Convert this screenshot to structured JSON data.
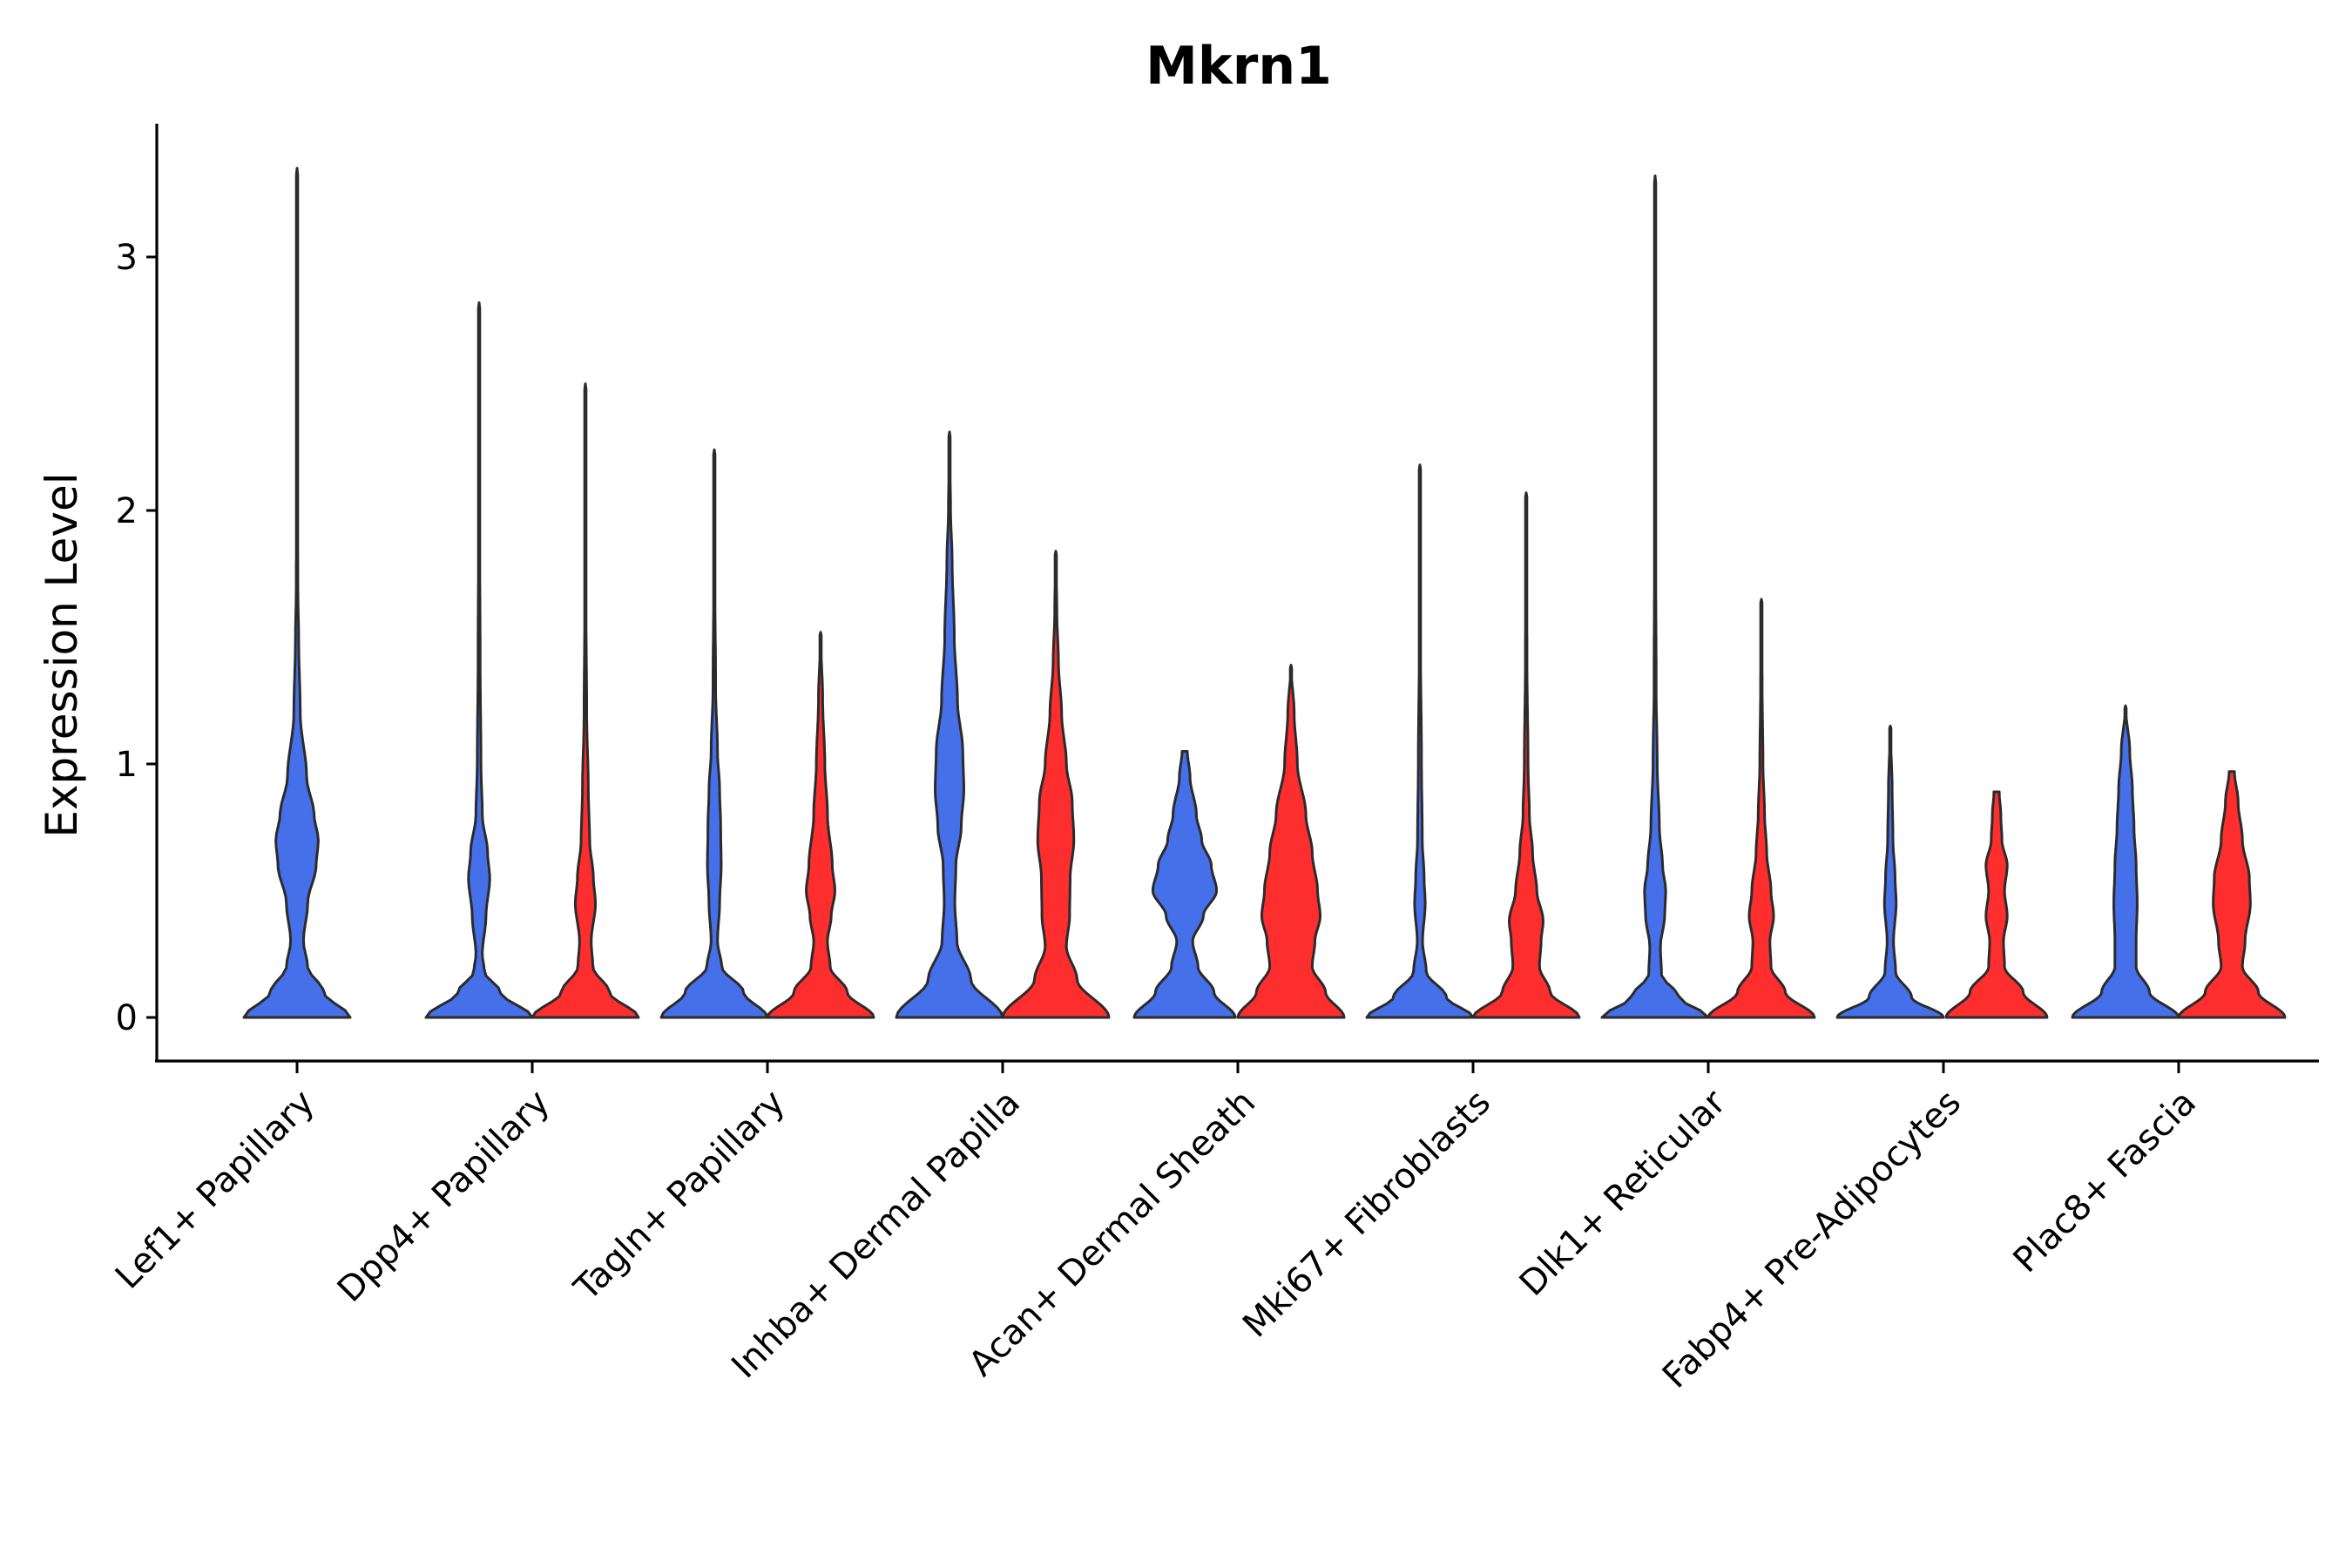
{
  "chart_data": {
    "type": "violin",
    "title": "Mkrn1",
    "xlabel": "",
    "ylabel": "Expression Level",
    "ylim": [
      -0.17,
      3.55
    ],
    "yticks": [
      0,
      1,
      2,
      3
    ],
    "grid": false,
    "legend": "none",
    "colors": {
      "group_a": "#4570ea",
      "group_b": "#ff2e2e",
      "outline": "#2b2b2b"
    },
    "categories": [
      "Lef1+ Papillary",
      "Dpp4+ Papillary",
      "Tagln+ Papillary",
      "Inhba+ Dermal Papilla",
      "Acan+ Dermal Sheath",
      "Mki67+ Fibroblasts",
      "Dlk1+ Reticular",
      "Fabp4+ Pre-Adipocytes",
      "Plac8+ Fascia"
    ],
    "series": [
      {
        "name": "group_a",
        "color": "#4570ea",
        "violins": [
          {
            "category": "Lef1+ Papillary",
            "max": 3.35,
            "profile": [
              [
                0,
                1.0
              ],
              [
                0.1,
                0.5
              ],
              [
                0.2,
                0.2
              ],
              [
                0.3,
                0.12
              ],
              [
                0.45,
                0.2
              ],
              [
                0.6,
                0.36
              ],
              [
                0.7,
                0.4
              ],
              [
                0.8,
                0.32
              ],
              [
                0.95,
                0.18
              ],
              [
                1.2,
                0.06
              ],
              [
                1.5,
                0.03
              ],
              [
                1.7,
                0.015
              ],
              [
                2.2,
                0.006
              ],
              [
                3.35,
                0
              ]
            ]
          },
          {
            "category": "Dpp4+ Papillary",
            "max": 2.82,
            "profile": [
              [
                0,
                1.0
              ],
              [
                0.1,
                0.4
              ],
              [
                0.18,
                0.1
              ],
              [
                0.25,
                0.06
              ],
              [
                0.4,
                0.13
              ],
              [
                0.55,
                0.2
              ],
              [
                0.65,
                0.16
              ],
              [
                0.8,
                0.06
              ],
              [
                1.0,
                0.035
              ],
              [
                1.4,
                0.02
              ],
              [
                2.0,
                0.008
              ],
              [
                2.82,
                0
              ]
            ]
          },
          {
            "category": "Tagln+ Papillary",
            "max": 2.24,
            "profile": [
              [
                0,
                1.0
              ],
              [
                0.1,
                0.55
              ],
              [
                0.2,
                0.14
              ],
              [
                0.3,
                0.06
              ],
              [
                0.45,
                0.1
              ],
              [
                0.6,
                0.13
              ],
              [
                0.75,
                0.12
              ],
              [
                0.9,
                0.1
              ],
              [
                1.05,
                0.06
              ],
              [
                1.3,
                0.025
              ],
              [
                1.7,
                0.012
              ],
              [
                2.24,
                0
              ]
            ]
          },
          {
            "category": "Inhba+ Dermal Papilla",
            "max": 2.31,
            "profile": [
              [
                0,
                1.0
              ],
              [
                0.15,
                0.4
              ],
              [
                0.3,
                0.14
              ],
              [
                0.45,
                0.1
              ],
              [
                0.6,
                0.12
              ],
              [
                0.75,
                0.22
              ],
              [
                0.9,
                0.27
              ],
              [
                1.05,
                0.25
              ],
              [
                1.25,
                0.15
              ],
              [
                1.5,
                0.09
              ],
              [
                1.8,
                0.05
              ],
              [
                2.0,
                0.02
              ],
              [
                2.31,
                0
              ]
            ]
          },
          {
            "category": "Acan+ Dermal Sheath",
            "max": 1.05,
            "profile": [
              [
                0,
                0.95
              ],
              [
                0.1,
                0.55
              ],
              [
                0.2,
                0.25
              ],
              [
                0.3,
                0.15
              ],
              [
                0.4,
                0.35
              ],
              [
                0.5,
                0.6
              ],
              [
                0.6,
                0.5
              ],
              [
                0.7,
                0.32
              ],
              [
                0.8,
                0.22
              ],
              [
                0.95,
                0.1
              ],
              [
                1.05,
                0.05
              ]
            ]
          },
          {
            "category": "Mki67+ Fibroblasts",
            "max": 2.18,
            "profile": [
              [
                0,
                1.0
              ],
              [
                0.08,
                0.5
              ],
              [
                0.18,
                0.12
              ],
              [
                0.3,
                0.05
              ],
              [
                0.45,
                0.1
              ],
              [
                0.55,
                0.08
              ],
              [
                0.7,
                0.045
              ],
              [
                1.0,
                0.03
              ],
              [
                1.5,
                0.01
              ],
              [
                2.18,
                0
              ]
            ]
          },
          {
            "category": "Dlk1+ Reticular",
            "max": 3.32,
            "profile": [
              [
                0,
                1.0
              ],
              [
                0.08,
                0.45
              ],
              [
                0.17,
                0.12
              ],
              [
                0.28,
                0.1
              ],
              [
                0.4,
                0.18
              ],
              [
                0.5,
                0.2
              ],
              [
                0.6,
                0.14
              ],
              [
                0.75,
                0.08
              ],
              [
                1.0,
                0.04
              ],
              [
                1.3,
                0.02
              ],
              [
                2.0,
                0.007
              ],
              [
                3.32,
                0
              ]
            ]
          },
          {
            "category": "Fabp4+ Pre-Adipocytes",
            "max": 1.15,
            "profile": [
              [
                0,
                1.0
              ],
              [
                0.08,
                0.4
              ],
              [
                0.18,
                0.1
              ],
              [
                0.3,
                0.06
              ],
              [
                0.45,
                0.11
              ],
              [
                0.55,
                0.09
              ],
              [
                0.7,
                0.05
              ],
              [
                0.9,
                0.035
              ],
              [
                1.15,
                0
              ]
            ]
          },
          {
            "category": "Plac8+ Fascia",
            "max": 1.23,
            "profile": [
              [
                0,
                1.0
              ],
              [
                0.1,
                0.45
              ],
              [
                0.2,
                0.2
              ],
              [
                0.3,
                0.2
              ],
              [
                0.45,
                0.22
              ],
              [
                0.6,
                0.2
              ],
              [
                0.75,
                0.16
              ],
              [
                0.9,
                0.13
              ],
              [
                1.05,
                0.08
              ],
              [
                1.23,
                0
              ]
            ]
          }
        ]
      },
      {
        "name": "group_b",
        "color": "#ff2e2e",
        "violins": [
          {
            "category": "Dpp4+ Papillary",
            "max": 2.5,
            "profile": [
              [
                0,
                1.0
              ],
              [
                0.1,
                0.45
              ],
              [
                0.2,
                0.14
              ],
              [
                0.3,
                0.11
              ],
              [
                0.45,
                0.19
              ],
              [
                0.55,
                0.15
              ],
              [
                0.7,
                0.08
              ],
              [
                0.9,
                0.055
              ],
              [
                1.2,
                0.025
              ],
              [
                1.6,
                0.012
              ],
              [
                2.5,
                0
              ]
            ]
          },
          {
            "category": "Tagln+ Papillary",
            "max": 1.52,
            "profile": [
              [
                0,
                1.0
              ],
              [
                0.1,
                0.5
              ],
              [
                0.2,
                0.18
              ],
              [
                0.3,
                0.13
              ],
              [
                0.4,
                0.2
              ],
              [
                0.5,
                0.27
              ],
              [
                0.6,
                0.22
              ],
              [
                0.8,
                0.13
              ],
              [
                1.0,
                0.08
              ],
              [
                1.25,
                0.04
              ],
              [
                1.52,
                0
              ]
            ]
          },
          {
            "category": "Inhba+ Dermal Papilla",
            "max": 1.84,
            "profile": [
              [
                0,
                1.0
              ],
              [
                0.15,
                0.4
              ],
              [
                0.28,
                0.2
              ],
              [
                0.4,
                0.26
              ],
              [
                0.55,
                0.27
              ],
              [
                0.7,
                0.34
              ],
              [
                0.85,
                0.31
              ],
              [
                1.0,
                0.2
              ],
              [
                1.2,
                0.11
              ],
              [
                1.4,
                0.05
              ],
              [
                1.6,
                0.02
              ],
              [
                1.84,
                0
              ]
            ]
          },
          {
            "category": "Acan+ Dermal Sheath",
            "max": 1.39,
            "profile": [
              [
                0,
                1.0
              ],
              [
                0.1,
                0.65
              ],
              [
                0.2,
                0.4
              ],
              [
                0.3,
                0.45
              ],
              [
                0.4,
                0.55
              ],
              [
                0.5,
                0.5
              ],
              [
                0.65,
                0.4
              ],
              [
                0.8,
                0.28
              ],
              [
                1.0,
                0.12
              ],
              [
                1.2,
                0.06
              ],
              [
                1.39,
                0
              ]
            ]
          },
          {
            "category": "Mki67+ Fibroblasts",
            "max": 2.07,
            "profile": [
              [
                0,
                1.0
              ],
              [
                0.1,
                0.45
              ],
              [
                0.2,
                0.25
              ],
              [
                0.3,
                0.28
              ],
              [
                0.38,
                0.32
              ],
              [
                0.5,
                0.2
              ],
              [
                0.65,
                0.12
              ],
              [
                0.8,
                0.06
              ],
              [
                1.0,
                0.035
              ],
              [
                1.4,
                0.015
              ],
              [
                2.07,
                0
              ]
            ]
          },
          {
            "category": "Dlk1+ Reticular",
            "max": 1.65,
            "profile": [
              [
                0,
                1.0
              ],
              [
                0.1,
                0.45
              ],
              [
                0.2,
                0.18
              ],
              [
                0.3,
                0.16
              ],
              [
                0.4,
                0.23
              ],
              [
                0.5,
                0.18
              ],
              [
                0.65,
                0.1
              ],
              [
                0.8,
                0.06
              ],
              [
                1.0,
                0.03
              ],
              [
                1.3,
                0.015
              ],
              [
                1.65,
                0
              ]
            ]
          },
          {
            "category": "Fabp4+ Pre-Adipocytes",
            "max": 0.89,
            "profile": [
              [
                0,
                0.95
              ],
              [
                0.1,
                0.5
              ],
              [
                0.2,
                0.15
              ],
              [
                0.3,
                0.13
              ],
              [
                0.4,
                0.2
              ],
              [
                0.5,
                0.15
              ],
              [
                0.6,
                0.2
              ],
              [
                0.7,
                0.1
              ],
              [
                0.8,
                0.08
              ],
              [
                0.89,
                0.05
              ]
            ]
          },
          {
            "category": "Plac8+ Fascia",
            "max": 0.97,
            "profile": [
              [
                0,
                1.0
              ],
              [
                0.1,
                0.5
              ],
              [
                0.2,
                0.2
              ],
              [
                0.3,
                0.25
              ],
              [
                0.45,
                0.35
              ],
              [
                0.55,
                0.33
              ],
              [
                0.7,
                0.2
              ],
              [
                0.85,
                0.12
              ],
              [
                0.97,
                0.05
              ]
            ]
          }
        ]
      }
    ]
  }
}
